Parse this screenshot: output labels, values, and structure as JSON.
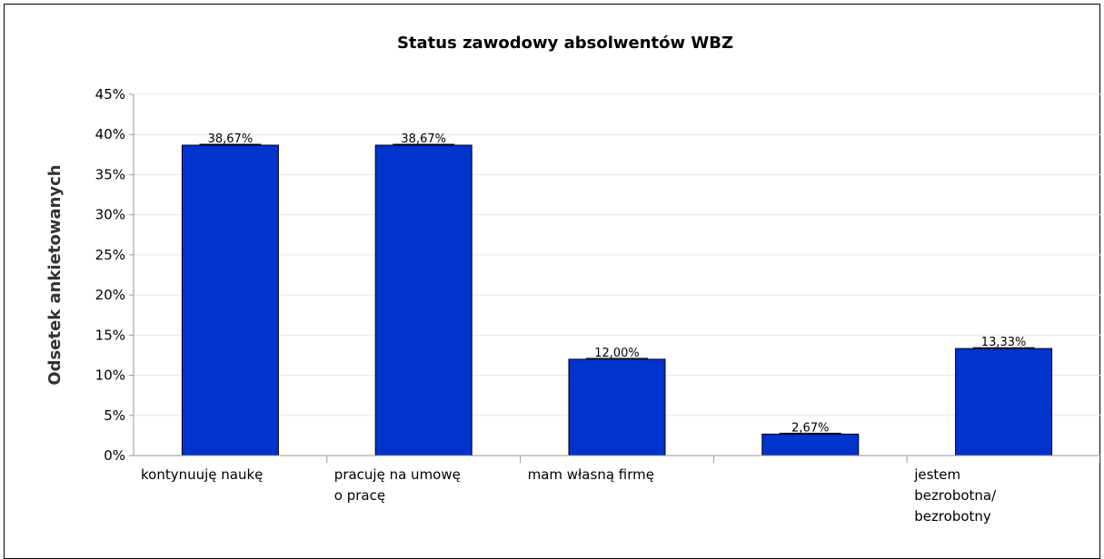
{
  "chart_data": {
    "type": "bar",
    "title": "Status zawodowy absolwentów WBZ",
    "xlabel": "",
    "ylabel": "Odsetek ankietowanych",
    "ylim": [
      0,
      45
    ],
    "ytick_step": 5,
    "ytick_labels": [
      "0%",
      "5%",
      "10%",
      "15%",
      "20%",
      "25%",
      "30%",
      "35%",
      "40%",
      "45%"
    ],
    "categories": [
      "kontynuuję naukę",
      "pracuję na umowę o pracę",
      "mam własną firmę",
      "",
      "jestem bezrobotna/ bezrobotny"
    ],
    "category_lines": [
      [
        "kontynuuję naukę"
      ],
      [
        "pracuję na umowę",
        "o pracę"
      ],
      [
        "mam własną firmę"
      ],
      [],
      [
        "jestem",
        "bezrobotna/",
        "bezrobotny"
      ]
    ],
    "values": [
      38.67,
      38.67,
      12.0,
      2.67,
      13.33
    ],
    "data_labels": [
      "38,67%",
      "38,67%",
      "12,00%",
      "2,67%",
      "13,33%"
    ],
    "colors": {
      "bar": "#0033CC",
      "bar_stroke": "#000000",
      "grid": "#E8E8E8",
      "axis": "#999999"
    },
    "grid": true,
    "legend": "none"
  }
}
